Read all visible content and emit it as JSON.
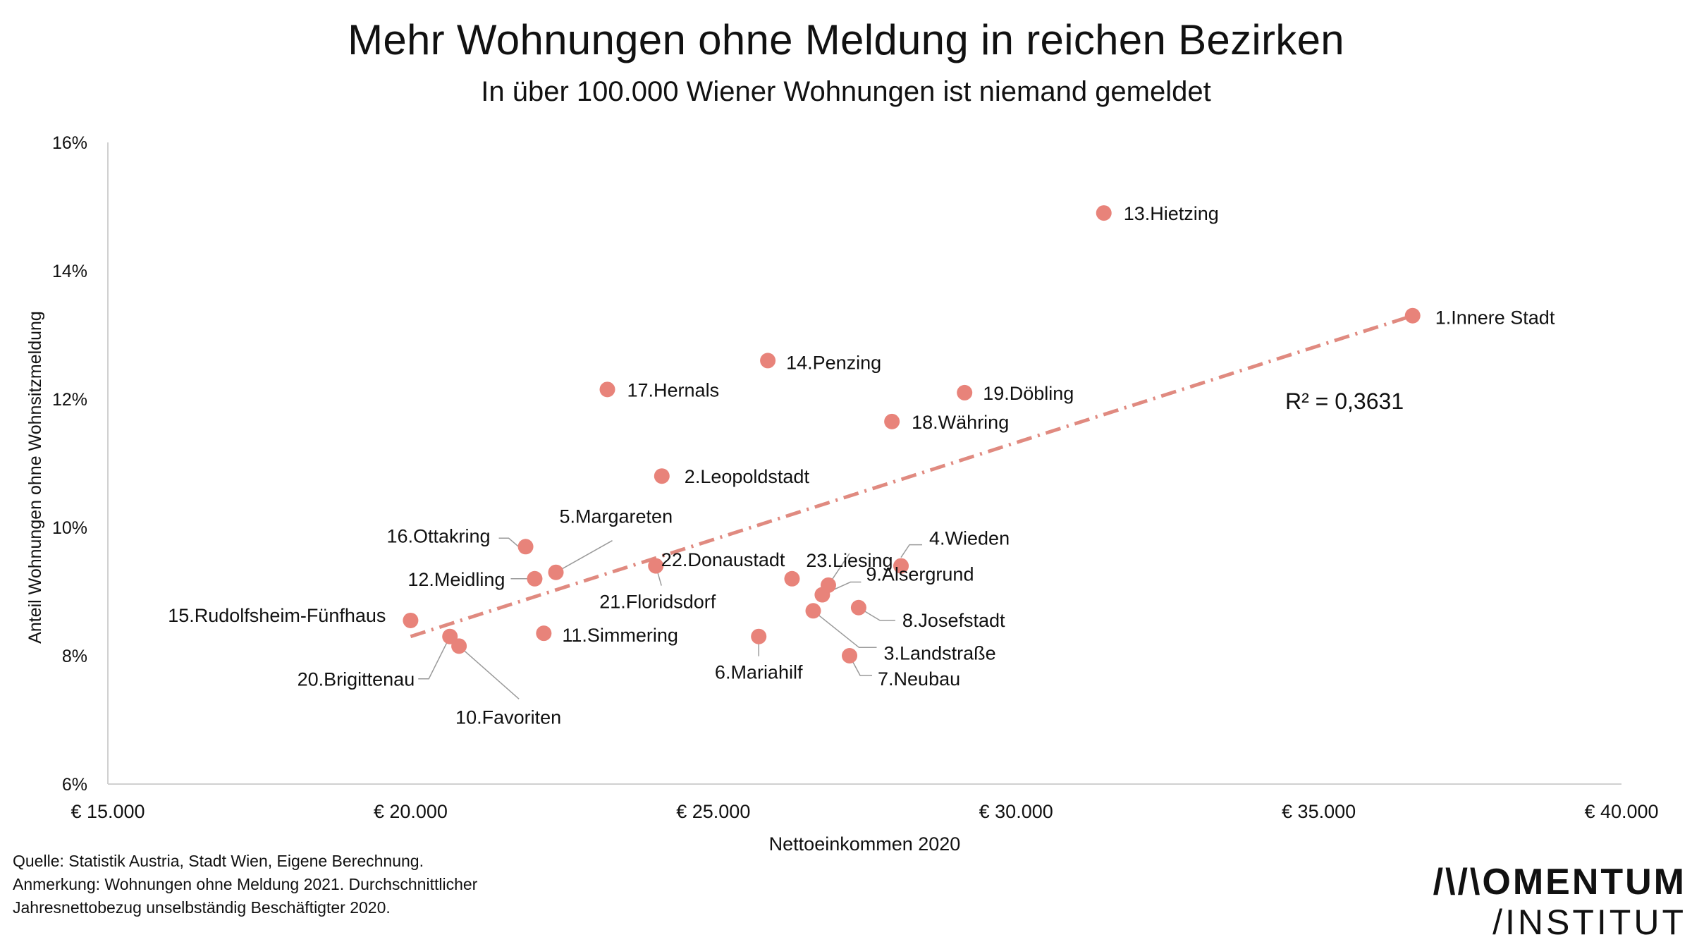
{
  "header": {
    "title": "Mehr Wohnungen ohne Meldung in reichen Bezirken",
    "subtitle": "In über 100.000 Wiener Wohnungen ist niemand gemeldet"
  },
  "footer": {
    "lines": [
      "Quelle: Statistik Austria, Stadt Wien, Eigene Berechnung.",
      "Anmerkung: Wohnungen ohne Meldung 2021. Durchschnittlicher",
      "Jahresnettobezug unselbständig Beschäftigter 2020."
    ]
  },
  "brand": {
    "line1": "/\\/\\OMENTUM",
    "line2": "/INSTITUT"
  },
  "colors": {
    "point": "#e8837a",
    "trendline": "#e08a80",
    "axis": "#d0d0d0",
    "text": "#111111"
  },
  "chart_data": {
    "type": "scatter",
    "title": "Mehr Wohnungen ohne Meldung in reichen Bezirken",
    "subtitle": "In über 100.000 Wiener Wohnungen ist niemand gemeldet",
    "xlabel": "Nettoeinkommen 2020",
    "ylabel": "Anteil Wohnungen ohne Wohnsitzmeldung",
    "xlim": [
      15000,
      40000
    ],
    "ylim": [
      6,
      16
    ],
    "x_ticks": [
      15000,
      20000,
      25000,
      30000,
      35000,
      40000
    ],
    "x_tick_labels": [
      "€ 15.000",
      "€ 20.000",
      "€ 25.000",
      "€ 30.000",
      "€ 35.000",
      "€ 40.000"
    ],
    "y_ticks": [
      6,
      8,
      10,
      12,
      14,
      16
    ],
    "y_tick_labels": [
      "6%",
      "8%",
      "10%",
      "12%",
      "14%",
      "16%"
    ],
    "grid": false,
    "trendline": {
      "type": "linear",
      "style": "dashed",
      "from": [
        20000,
        8.3
      ],
      "to": [
        36550,
        13.3
      ],
      "label": "R² = 0,3631"
    },
    "points": [
      {
        "label": "1.Innere Stadt",
        "x": 36550,
        "y": 13.3
      },
      {
        "label": "2.Leopoldstadt",
        "x": 24150,
        "y": 10.8
      },
      {
        "label": "3.Landstraße",
        "x": 26650,
        "y": 8.7
      },
      {
        "label": "4.Wieden",
        "x": 28100,
        "y": 9.4
      },
      {
        "label": "5.Margareten",
        "x": 22400,
        "y": 9.3
      },
      {
        "label": "6.Mariahilf",
        "x": 25750,
        "y": 8.3
      },
      {
        "label": "7.Neubau",
        "x": 27250,
        "y": 8.0
      },
      {
        "label": "8.Josefstadt",
        "x": 27400,
        "y": 8.75
      },
      {
        "label": "9.Alsergrund",
        "x": 26800,
        "y": 8.95
      },
      {
        "label": "10.Favoriten",
        "x": 20800,
        "y": 8.15
      },
      {
        "label": "11.Simmering",
        "x": 22200,
        "y": 8.35
      },
      {
        "label": "12.Meidling",
        "x": 22050,
        "y": 9.2
      },
      {
        "label": "13.Hietzing",
        "x": 31450,
        "y": 14.9
      },
      {
        "label": "14.Penzing",
        "x": 25900,
        "y": 12.6
      },
      {
        "label": "15.Rudolfsheim-Fünfhaus",
        "x": 20000,
        "y": 8.55
      },
      {
        "label": "16.Ottakring",
        "x": 21900,
        "y": 9.7
      },
      {
        "label": "17.Hernals",
        "x": 23250,
        "y": 12.15
      },
      {
        "label": "18.Währing",
        "x": 27950,
        "y": 11.65
      },
      {
        "label": "19.Döbling",
        "x": 29150,
        "y": 12.1
      },
      {
        "label": "20.Brigittenau",
        "x": 20650,
        "y": 8.3
      },
      {
        "label": "21.Floridsdorf",
        "x": 24050,
        "y": 9.4
      },
      {
        "label": "22.Donaustadt",
        "x": 26300,
        "y": 9.2
      },
      {
        "label": "23.Liesing",
        "x": 26900,
        "y": 9.1
      }
    ]
  }
}
